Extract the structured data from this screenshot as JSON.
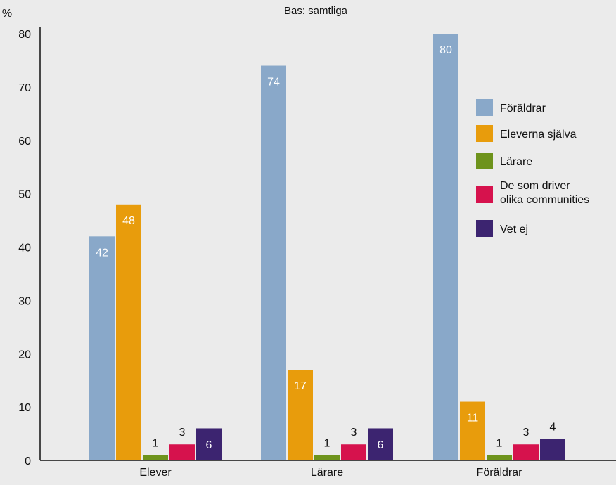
{
  "chart_data": {
    "type": "bar",
    "subtitle": "Bas: samtliga",
    "ylabel": "%",
    "xlabel": "",
    "ylim": [
      0,
      80
    ],
    "yticks": [
      0,
      10,
      20,
      30,
      40,
      50,
      60,
      70,
      80
    ],
    "categories": [
      "Elever",
      "Lärare",
      "Föräldrar"
    ],
    "series": [
      {
        "name": "Föräldrar",
        "color": "#89a8c9",
        "values": [
          42,
          74,
          80
        ]
      },
      {
        "name": "Eleverna själva",
        "color": "#e89c0c",
        "values": [
          48,
          17,
          11
        ]
      },
      {
        "name": "Lärare",
        "color": "#6e931c",
        "values": [
          1,
          1,
          1
        ]
      },
      {
        "name": "De som driver olika communities",
        "color": "#d6124d",
        "values": [
          3,
          3,
          3
        ]
      },
      {
        "name": "Vet ej",
        "color": "#3c2470",
        "values": [
          6,
          6,
          4
        ]
      }
    ],
    "legend": {
      "position": "right",
      "entries": [
        {
          "lines": [
            "Föräldrar"
          ]
        },
        {
          "lines": [
            "Eleverna själva"
          ]
        },
        {
          "lines": [
            "Lärare"
          ]
        },
        {
          "lines": [
            "De som driver",
            "olika communities"
          ]
        },
        {
          "lines": [
            "Vet ej"
          ]
        }
      ]
    },
    "grid": false
  }
}
